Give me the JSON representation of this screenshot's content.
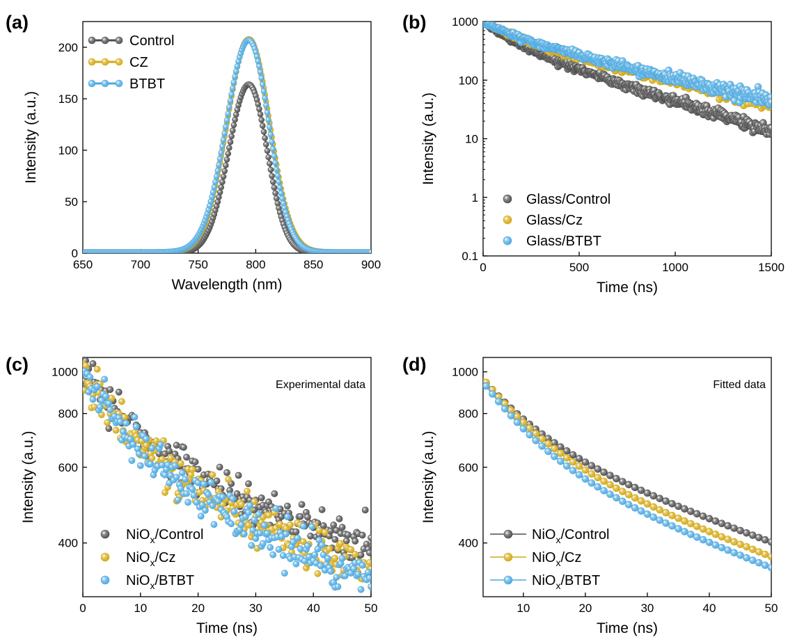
{
  "colors": {
    "control": "#4d4d4d",
    "cz": "#d4a810",
    "btbt": "#4aa8e0"
  },
  "chart_data": [
    {
      "id": "a",
      "panel_label": "(a)",
      "type": "line",
      "xlabel": "Wavelength (nm)",
      "ylabel": "Intensity (a.u.)",
      "xlim": [
        650,
        900
      ],
      "ylim": [
        0,
        225
      ],
      "xticks": [
        650,
        700,
        750,
        800,
        850,
        900
      ],
      "yticks": [
        0,
        50,
        100,
        150,
        200
      ],
      "legend_position": "top-left",
      "series": [
        {
          "name": "Control",
          "color_key": "control",
          "peak_nm": 794,
          "peak": 164,
          "width_left": 17.5,
          "width_right": 16,
          "baseline": 0,
          "samples": [
            [
              650,
              0
            ],
            [
              700,
              0
            ],
            [
              730,
              0.5
            ],
            [
              750,
              5
            ],
            [
              770,
              46
            ],
            [
              785,
              130
            ],
            [
              794,
              164
            ],
            [
              805,
              125
            ],
            [
              820,
              49
            ],
            [
              840,
              3
            ],
            [
              850,
              1
            ],
            [
              900,
              0
            ]
          ]
        },
        {
          "name": "CZ",
          "color_key": "cz",
          "peak_nm": 794,
          "peak": 207,
          "width_left": 19,
          "width_right": 18,
          "baseline": 1,
          "samples": [
            [
              650,
              1
            ],
            [
              700,
              1
            ],
            [
              730,
              3
            ],
            [
              750,
              13
            ],
            [
              770,
              78
            ],
            [
              785,
              185
            ],
            [
              794,
              207
            ],
            [
              805,
              175
            ],
            [
              820,
              77
            ],
            [
              840,
              9
            ],
            [
              850,
              2
            ],
            [
              900,
              1
            ]
          ]
        },
        {
          "name": "BTBT",
          "color_key": "btbt",
          "peak_nm": 794,
          "peak": 206,
          "width_left": 19.5,
          "width_right": 17.5,
          "baseline": 1,
          "samples": [
            [
              650,
              1
            ],
            [
              700,
              1
            ],
            [
              730,
              3
            ],
            [
              750,
              14
            ],
            [
              770,
              82
            ],
            [
              785,
              187
            ],
            [
              794,
              206
            ],
            [
              805,
              173
            ],
            [
              820,
              74
            ],
            [
              840,
              8
            ],
            [
              850,
              2
            ],
            [
              900,
              1
            ]
          ]
        }
      ]
    },
    {
      "id": "b",
      "panel_label": "(b)",
      "type": "scatter",
      "xlabel": "Time (ns)",
      "ylabel": "Intensity (a.u.)",
      "xlim": [
        0,
        1500
      ],
      "ylim": [
        0.1,
        1000
      ],
      "yscale": "log",
      "xticks": [
        0,
        500,
        1000,
        1500
      ],
      "yticks": [
        0.1,
        1,
        10,
        100,
        1000
      ],
      "ytick_labels": [
        "0.1",
        "1",
        "10",
        "100",
        "1000"
      ],
      "legend_position": "bottom-left",
      "series": [
        {
          "name": "Glass/Control",
          "color_key": "control",
          "A1": 500,
          "t1": 120,
          "A2": 480,
          "t2": 420,
          "samples": [
            [
              0,
              980
            ],
            [
              250,
              280
            ],
            [
              500,
              110
            ],
            [
              1000,
              32
            ],
            [
              1500,
              13
            ]
          ]
        },
        {
          "name": "Glass/Cz",
          "color_key": "cz",
          "A1": 420,
          "t1": 150,
          "A2": 560,
          "t2": 560,
          "samples": [
            [
              0,
              980
            ],
            [
              250,
              330
            ],
            [
              500,
              190
            ],
            [
              1000,
              70
            ],
            [
              1500,
              27
            ]
          ]
        },
        {
          "name": "Glass/BTBT",
          "color_key": "btbt",
          "A1": 380,
          "t1": 150,
          "A2": 600,
          "t2": 580,
          "samples": [
            [
              0,
              980
            ],
            [
              250,
              410
            ],
            [
              500,
              250
            ],
            [
              1000,
              110
            ],
            [
              1500,
              48
            ]
          ]
        }
      ]
    },
    {
      "id": "c",
      "panel_label": "(c)",
      "type": "scatter",
      "annotation": "Experimental data",
      "xlabel": "Time (ns)",
      "ylabel": "Intensity (a.u.)",
      "xlim": [
        0,
        50
      ],
      "ylim": [
        300,
        1080
      ],
      "yscale": "log",
      "xticks": [
        0,
        10,
        20,
        30,
        40,
        50
      ],
      "yticks": [
        400,
        600,
        800,
        1000
      ],
      "legend_position": "bottom-left",
      "series": [
        {
          "name_main": "NiO",
          "name_sub": "x",
          "name_tail": "/Control",
          "color_key": "control",
          "A1": 360,
          "t1": 10,
          "A2": 640,
          "t2": 100,
          "noise": 0.05,
          "seed": 3,
          "samples": [
            [
              0,
              1000
            ],
            [
              10,
              700
            ],
            [
              20,
              560
            ],
            [
              30,
              480
            ],
            [
              40,
              440
            ],
            [
              50,
              410
            ]
          ]
        },
        {
          "name_main": "NiO",
          "name_sub": "x",
          "name_tail": "/Cz",
          "color_key": "cz",
          "A1": 400,
          "t1": 10,
          "A2": 600,
          "t2": 90,
          "noise": 0.055,
          "seed": 7,
          "samples": [
            [
              0,
              1000
            ],
            [
              10,
              680
            ],
            [
              20,
              530
            ],
            [
              30,
              450
            ],
            [
              40,
              400
            ],
            [
              50,
              360
            ]
          ]
        },
        {
          "name_main": "NiO",
          "name_sub": "x",
          "name_tail": "/BTBT",
          "color_key": "btbt",
          "A1": 420,
          "t1": 10,
          "A2": 580,
          "t2": 85,
          "noise": 0.055,
          "seed": 11,
          "samples": [
            [
              0,
              1000
            ],
            [
              10,
              660
            ],
            [
              20,
              520
            ],
            [
              30,
              430
            ],
            [
              40,
              380
            ],
            [
              50,
              340
            ]
          ]
        }
      ]
    },
    {
      "id": "d",
      "panel_label": "(d)",
      "type": "line",
      "annotation": "Fitted data",
      "xlabel": "Time (ns)",
      "ylabel": "Intensity (a.u.)",
      "xlim": [
        3.5,
        50
      ],
      "ylim": [
        300,
        1080
      ],
      "yscale": "log",
      "xticks": [
        10,
        20,
        30,
        40,
        50
      ],
      "yticks": [
        400,
        600,
        800,
        1000
      ],
      "legend_position": "bottom-left",
      "series": [
        {
          "name_main": "NiO",
          "name_sub": "x",
          "name_tail": "/Control",
          "color_key": "control",
          "A1": 390,
          "t1": 9.5,
          "A2": 720,
          "t2": 85,
          "samples": [
            [
              4,
              965
            ],
            [
              10,
              780
            ],
            [
              20,
              610
            ],
            [
              30,
              520
            ],
            [
              40,
              460
            ],
            [
              50,
              415
            ]
          ]
        },
        {
          "name_main": "NiO",
          "name_sub": "x",
          "name_tail": "/Cz",
          "color_key": "cz",
          "A1": 440,
          "t1": 9.5,
          "A2": 690,
          "t2": 80,
          "samples": [
            [
              4,
              965
            ],
            [
              10,
              760
            ],
            [
              20,
              580
            ],
            [
              30,
              480
            ],
            [
              40,
              410
            ],
            [
              50,
              365
            ]
          ]
        },
        {
          "name_main": "NiO",
          "name_sub": "x",
          "name_tail": "/BTBT",
          "color_key": "btbt",
          "A1": 470,
          "t1": 9.5,
          "A2": 650,
          "t2": 80,
          "samples": [
            [
              4,
              955
            ],
            [
              10,
              745
            ],
            [
              20,
              560
            ],
            [
              30,
              465
            ],
            [
              40,
              395
            ],
            [
              50,
              350
            ]
          ]
        }
      ]
    }
  ]
}
